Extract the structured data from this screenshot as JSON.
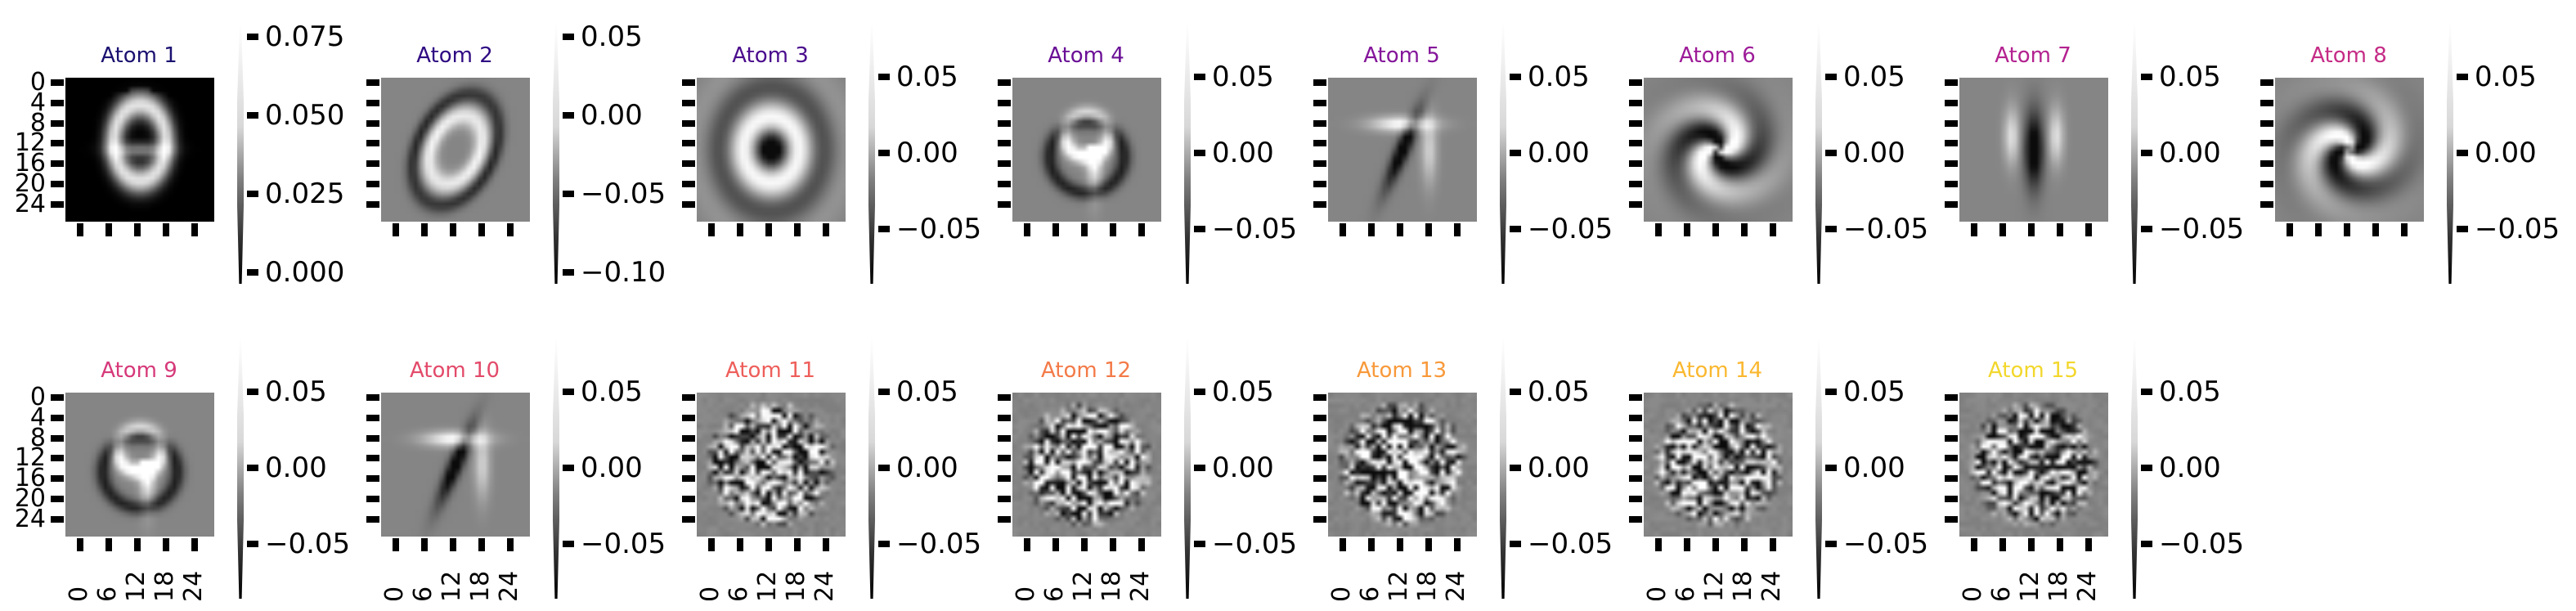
{
  "atoms": [
    {
      "title": "Atom 1",
      "color": "#1a1170",
      "style": "blob",
      "ticks": [
        "0.075",
        "0.050",
        "0.025",
        "0.000"
      ],
      "grid": {
        "show_y": true,
        "show_x": false
      }
    },
    {
      "title": "Atom 2",
      "color": "#2f0a82",
      "style": "zero",
      "ticks": [
        "0.05",
        "0.00",
        "−0.05",
        "−0.10"
      ],
      "grid": {
        "show_y": false,
        "show_x": false
      }
    },
    {
      "title": "Atom 3",
      "color": "#4a0c8c",
      "style": "ring",
      "ticks": [
        "0.05",
        "0.00",
        "−0.05"
      ],
      "grid": {
        "show_y": false,
        "show_x": false
      }
    },
    {
      "title": "Atom 4",
      "color": "#6a0f96",
      "style": "nine",
      "ticks": [
        "0.05",
        "0.00",
        "−0.05"
      ],
      "grid": {
        "show_y": false,
        "show_x": false
      }
    },
    {
      "title": "Atom 5",
      "color": "#84159a",
      "style": "seven",
      "ticks": [
        "0.05",
        "0.00",
        "−0.05"
      ],
      "grid": {
        "show_y": false,
        "show_x": false
      }
    },
    {
      "title": "Atom 6",
      "color": "#9d1b98",
      "style": "swirl",
      "ticks": [
        "0.05",
        "0.00",
        "−0.05"
      ],
      "grid": {
        "show_y": false,
        "show_x": false
      }
    },
    {
      "title": "Atom 7",
      "color": "#b32290",
      "style": "bar",
      "ticks": [
        "0.05",
        "0.00",
        "−0.05"
      ],
      "grid": {
        "show_y": false,
        "show_x": false
      }
    },
    {
      "title": "Atom 8",
      "color": "#c52c86",
      "style": "swirl",
      "ticks": [
        "0.05",
        "0.00",
        "−0.05"
      ],
      "grid": {
        "show_y": false,
        "show_x": false
      }
    },
    {
      "title": "Atom 9",
      "color": "#d6397a",
      "style": "nine",
      "ticks": [
        "0.05",
        "0.00",
        "−0.05"
      ],
      "grid": {
        "show_y": true,
        "show_x": true
      }
    },
    {
      "title": "Atom 10",
      "color": "#e34a6a",
      "style": "seven",
      "ticks": [
        "0.05",
        "0.00",
        "−0.05"
      ],
      "grid": {
        "show_y": false,
        "show_x": true
      }
    },
    {
      "title": "Atom 11",
      "color": "#ee5e5a",
      "style": "noise",
      "ticks": [
        "0.05",
        "0.00",
        "−0.05"
      ],
      "grid": {
        "show_y": false,
        "show_x": true
      }
    },
    {
      "title": "Atom 12",
      "color": "#f37a48",
      "style": "noise",
      "ticks": [
        "0.05",
        "0.00",
        "−0.05"
      ],
      "grid": {
        "show_y": false,
        "show_x": true
      }
    },
    {
      "title": "Atom 13",
      "color": "#f8993a",
      "style": "noise",
      "ticks": [
        "0.05",
        "0.00",
        "−0.05"
      ],
      "grid": {
        "show_y": false,
        "show_x": true
      }
    },
    {
      "title": "Atom 14",
      "color": "#fab830",
      "style": "noise",
      "ticks": [
        "0.05",
        "0.00",
        "−0.05"
      ],
      "grid": {
        "show_y": false,
        "show_x": true
      }
    },
    {
      "title": "Atom 15",
      "color": "#f2d72c",
      "style": "noise",
      "ticks": [
        "0.05",
        "0.00",
        "−0.05"
      ],
      "grid": {
        "show_y": false,
        "show_x": true
      }
    }
  ],
  "y_tick_labels": [
    "0",
    "4",
    "8",
    "12",
    "16",
    "20",
    "24"
  ],
  "x_tick_labels": [
    "0",
    "6",
    "12",
    "18",
    "24"
  ]
}
